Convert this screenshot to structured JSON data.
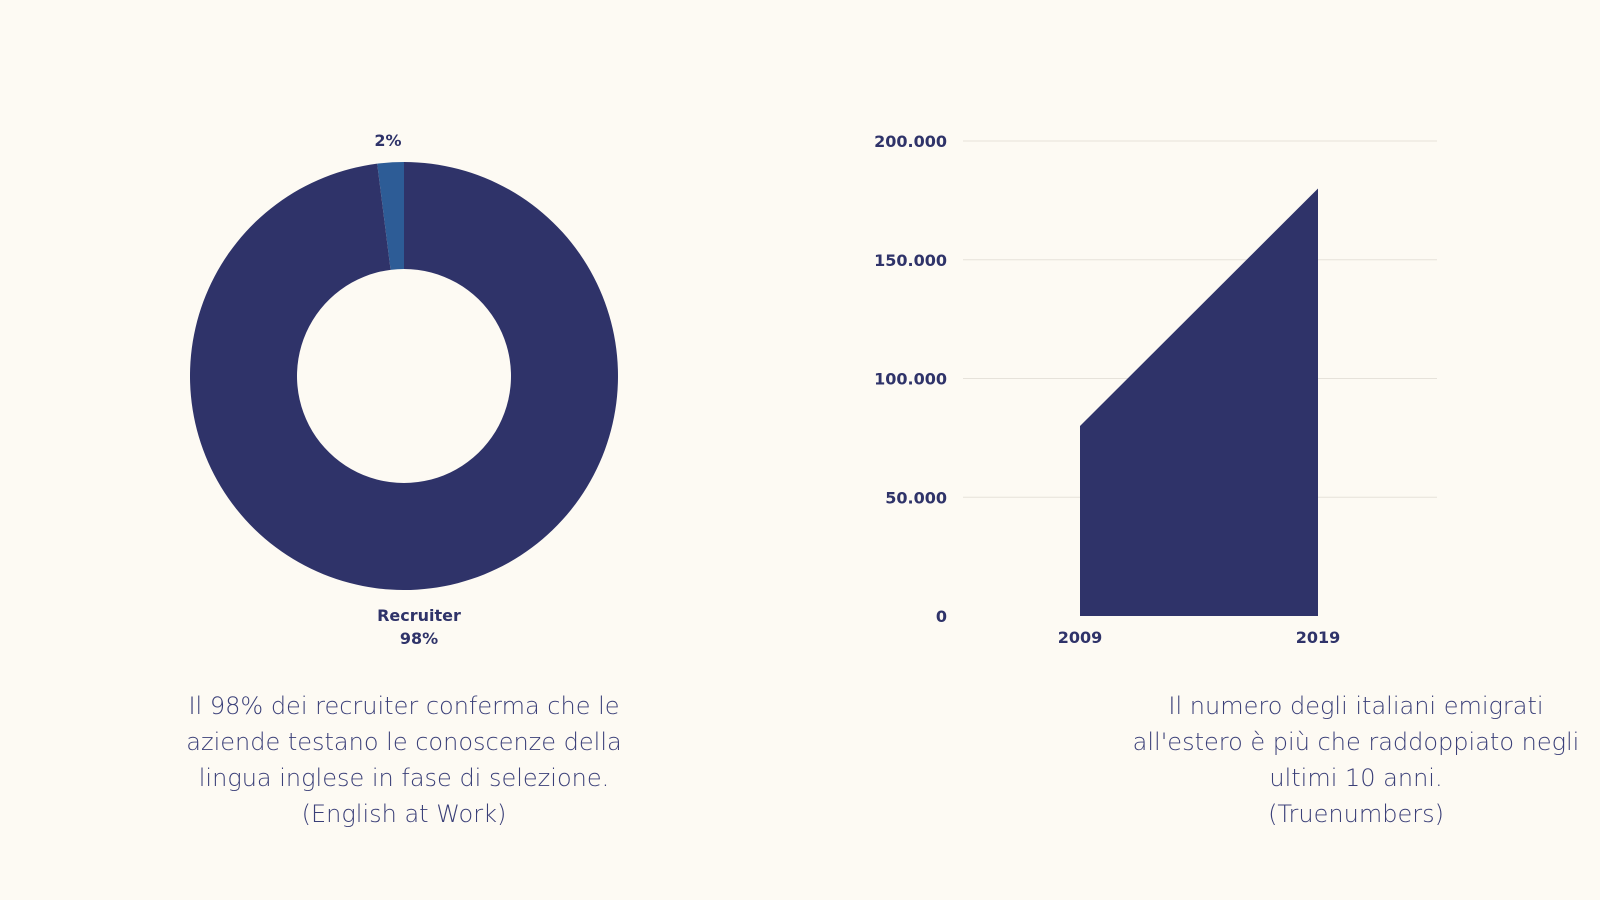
{
  "theme": {
    "background": "#fdfaf3",
    "primary": "#2f3369",
    "accent": "#2d5c96",
    "grid": "#e6e2da",
    "caption_text": "#3a3f78"
  },
  "chart_data": [
    {
      "type": "pie",
      "donut": true,
      "title": "",
      "slices": [
        {
          "label": "",
          "value": 2,
          "value_label": "2%",
          "color": "#2d5c96"
        },
        {
          "label": "Recruiter",
          "value": 98,
          "value_label": "98%",
          "color": "#2f3369"
        }
      ]
    },
    {
      "type": "area",
      "title": "",
      "xlabel": "",
      "ylabel": "",
      "x": [
        "2009",
        "2019"
      ],
      "series": [
        {
          "values": [
            80000,
            180000
          ],
          "color": "#2f3369"
        }
      ],
      "ylim": [
        0,
        200000
      ],
      "yticks": [
        0,
        50000,
        100000,
        150000,
        200000
      ],
      "ytick_labels": [
        "0",
        "50.000",
        "100.000",
        "150.000",
        "200.000"
      ],
      "grid": "horizontal"
    }
  ],
  "captions": {
    "left": [
      "Il 98% dei recruiter conferma che le",
      "aziende testano le conoscenze della",
      "lingua inglese in fase di selezione.",
      "(English at Work)"
    ],
    "right": [
      "Il numero degli italiani emigrati",
      "all'estero è più che raddoppiato negli",
      "ultimi 10 anni.",
      "(Truenumbers)"
    ]
  }
}
